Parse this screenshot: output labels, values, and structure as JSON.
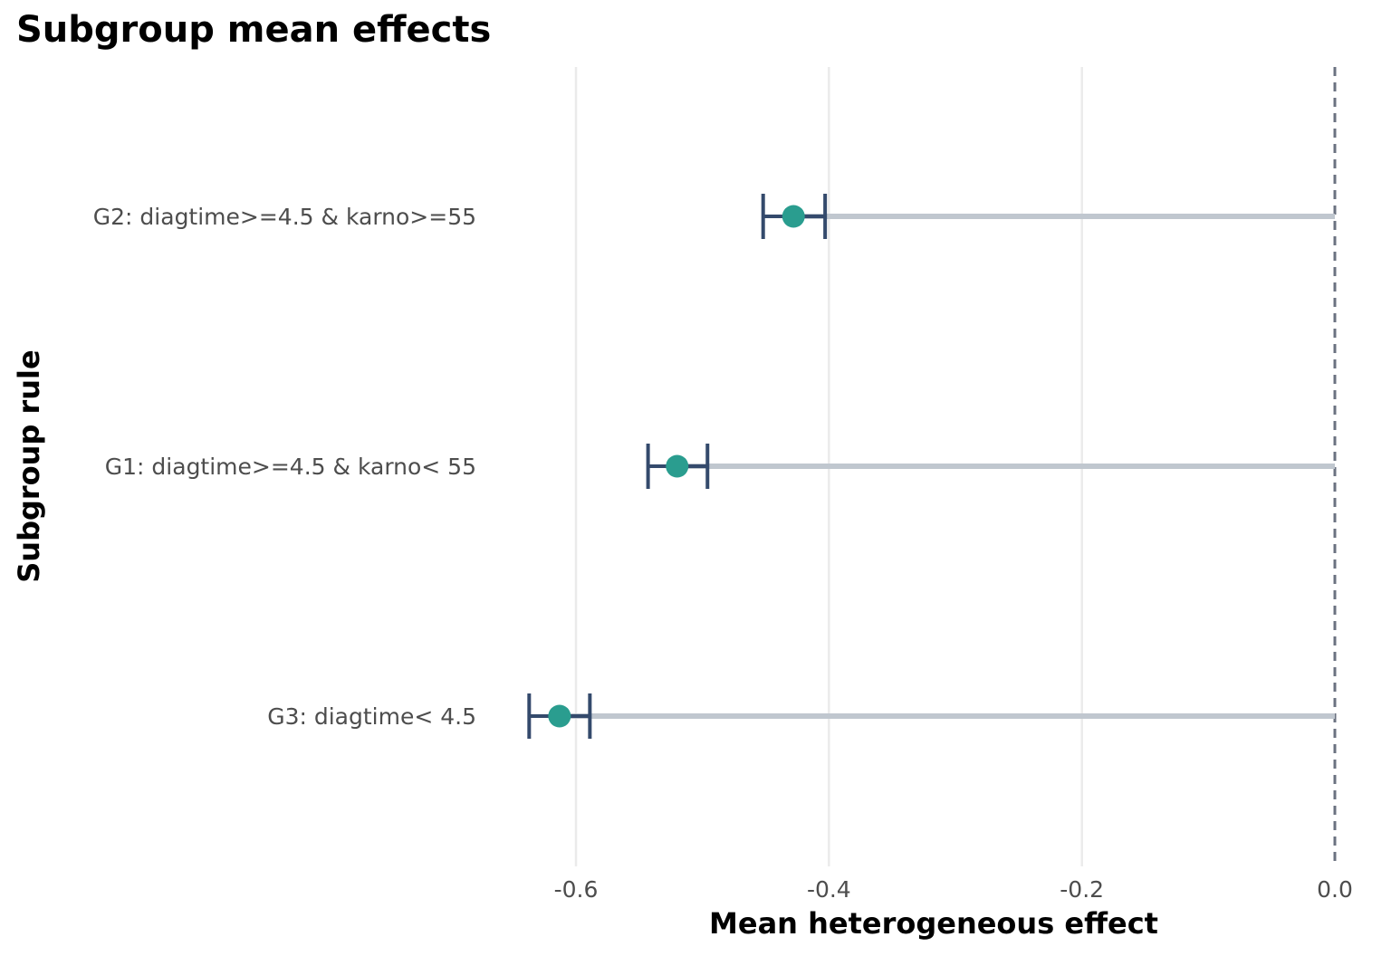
{
  "chart_data": {
    "type": "forest",
    "title": "Subgroup mean effects",
    "xlabel": "Mean heterogeneous effect",
    "ylabel": "Subgroup rule",
    "xlim": [
      -0.7,
      0.0
    ],
    "xticks": [
      -0.6,
      -0.4,
      -0.2,
      0.0
    ],
    "xtick_labels": [
      "-0.6",
      "-0.4",
      "-0.2",
      "0.0"
    ],
    "reference_line": 0.0,
    "grid": "vertical major",
    "categories": [
      "G2: diagtime>=4.5 & karno>=55",
      "G1: diagtime>=4.5 & karno< 55",
      "G3: diagtime< 4.5"
    ],
    "estimates": [
      -0.428,
      -0.52,
      -0.613
    ],
    "ci_lower": [
      -0.452,
      -0.543,
      -0.637
    ],
    "ci_upper": [
      -0.403,
      -0.496,
      -0.589
    ],
    "colors": {
      "point": "#2a9d8f",
      "errorbar": "#344a6c",
      "bar_to_zero": "#c0c7cf",
      "grid": "#ebebeb",
      "reference": "#6b7280"
    }
  }
}
